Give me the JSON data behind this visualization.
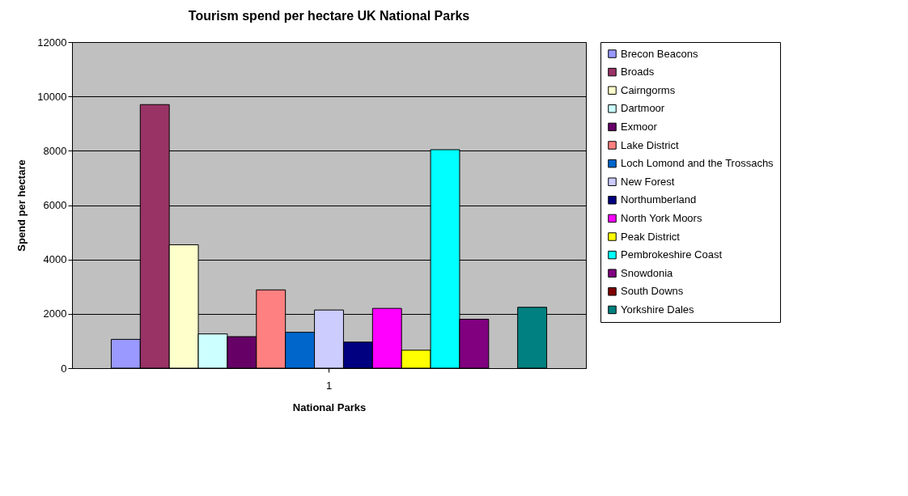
{
  "chart_data": {
    "type": "bar",
    "title": "Tourism spend per hectare UK National Parks",
    "xlabel": "National Parks",
    "ylabel": "Spend per hectare",
    "categories": [
      "1"
    ],
    "series": [
      {
        "name": "Brecon Beacons",
        "color": "#9999ff",
        "values": [
          1060
        ]
      },
      {
        "name": "Broads",
        "color": "#993366",
        "values": [
          9700
        ]
      },
      {
        "name": "Cairngorms",
        "color": "#ffffcc",
        "values": [
          4540
        ]
      },
      {
        "name": "Dartmoor",
        "color": "#ccffff",
        "values": [
          1260
        ]
      },
      {
        "name": "Exmoor",
        "color": "#660066",
        "values": [
          1160
        ]
      },
      {
        "name": "Lake District",
        "color": "#ff8080",
        "values": [
          2880
        ]
      },
      {
        "name": "Loch Lomond and the Trossachs",
        "color": "#0066cc",
        "values": [
          1320
        ]
      },
      {
        "name": "New Forest",
        "color": "#ccccff",
        "values": [
          2140
        ]
      },
      {
        "name": "Northumberland",
        "color": "#000080",
        "values": [
          960
        ]
      },
      {
        "name": "North York Moors",
        "color": "#ff00ff",
        "values": [
          2200
        ]
      },
      {
        "name": "Peak District",
        "color": "#ffff00",
        "values": [
          660
        ]
      },
      {
        "name": "Pembrokeshire Coast",
        "color": "#00ffff",
        "values": [
          8040
        ]
      },
      {
        "name": "Snowdonia",
        "color": "#800080",
        "values": [
          1800
        ]
      },
      {
        "name": "South Downs",
        "color": "#800000",
        "values": [
          null
        ]
      },
      {
        "name": "Yorkshire Dales",
        "color": "#008080",
        "values": [
          2240
        ]
      }
    ],
    "ylim": [
      0,
      12000
    ],
    "yticks": [
      0,
      2000,
      4000,
      6000,
      8000,
      10000,
      12000
    ],
    "grid": "y",
    "legend": "right"
  }
}
